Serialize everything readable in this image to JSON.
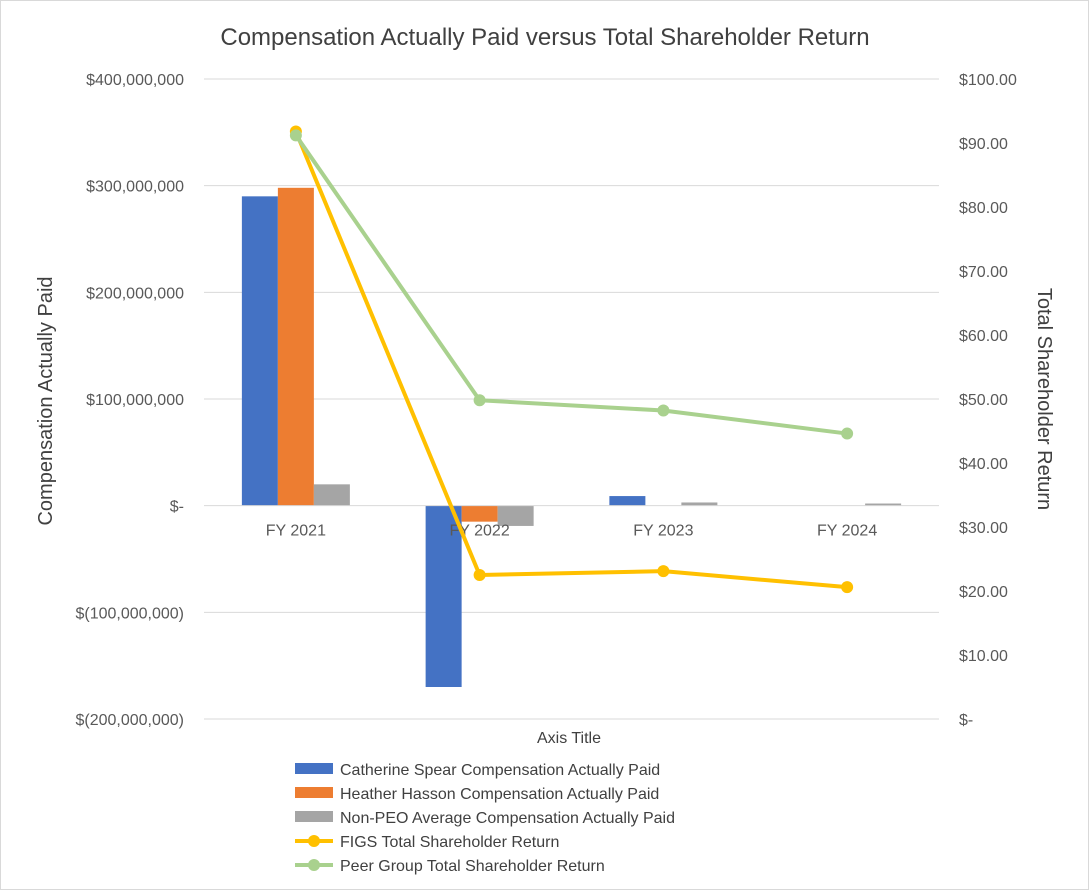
{
  "chart_data": {
    "type": "bar",
    "title": "Compensation Actually Paid versus Total Shareholder Return",
    "xlabel": "Axis Title",
    "ylabel": "Compensation Actually Paid",
    "y2label": "Total Shareholder Return",
    "categories": [
      "FY 2021",
      "FY 2022",
      "FY 2023",
      "FY 2024"
    ],
    "ylim": [
      -200000000,
      400000000
    ],
    "y2lim": [
      0,
      100
    ],
    "y_ticks": [
      {
        "value": 400000000,
        "label": "$400,000,000"
      },
      {
        "value": 300000000,
        "label": "$300,000,000"
      },
      {
        "value": 200000000,
        "label": "$200,000,000"
      },
      {
        "value": 100000000,
        "label": "$100,000,000"
      },
      {
        "value": 0,
        "label": "$-"
      },
      {
        "value": -100000000,
        "label": "$(100,000,000)"
      },
      {
        "value": -200000000,
        "label": "$(200,000,000)"
      }
    ],
    "y2_ticks": [
      {
        "value": 100,
        "label": "$100.00"
      },
      {
        "value": 90,
        "label": "$90.00"
      },
      {
        "value": 80,
        "label": "$80.00"
      },
      {
        "value": 70,
        "label": "$70.00"
      },
      {
        "value": 60,
        "label": "$60.00"
      },
      {
        "value": 50,
        "label": "$50.00"
      },
      {
        "value": 40,
        "label": "$40.00"
      },
      {
        "value": 30,
        "label": "$30.00"
      },
      {
        "value": 20,
        "label": "$20.00"
      },
      {
        "value": 10,
        "label": "$10.00"
      },
      {
        "value": 0,
        "label": "$-"
      }
    ],
    "grid": true,
    "legend_position": "bottom",
    "series": [
      {
        "name": "Catherine Spear Compensation Actually Paid",
        "kind": "bar",
        "axis": "left",
        "color": "#4472C4",
        "values": [
          290000000,
          -170000000,
          9000000,
          0
        ]
      },
      {
        "name": "Heather Hasson Compensation Actually Paid",
        "kind": "bar",
        "axis": "left",
        "color": "#ED7D31",
        "values": [
          298000000,
          -15000000,
          0,
          0
        ]
      },
      {
        "name": "Non-PEO Average Compensation Actually Paid",
        "kind": "bar",
        "axis": "left",
        "color": "#A5A5A5",
        "values": [
          20000000,
          -19000000,
          3000000,
          2000000
        ]
      },
      {
        "name": "FIGS Total Shareholder Return",
        "kind": "line",
        "axis": "right",
        "color": "#FFC000",
        "values": [
          91.8,
          22.5,
          23.1,
          20.6
        ]
      },
      {
        "name": "Peer Group Total Shareholder Return",
        "kind": "line",
        "axis": "right",
        "color": "#A9D18E",
        "values": [
          91.2,
          49.8,
          48.2,
          44.6
        ]
      }
    ]
  }
}
